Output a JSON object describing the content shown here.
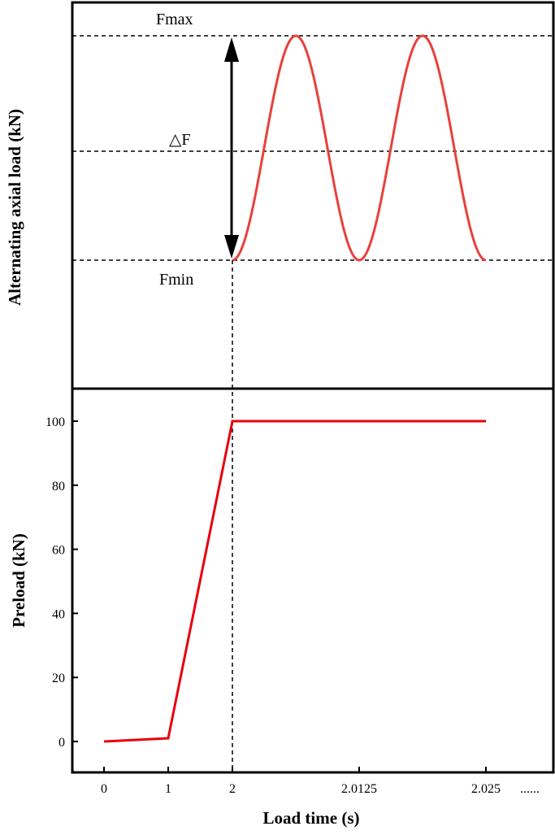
{
  "chart_data": [
    {
      "type": "line",
      "panel": "top",
      "title": "",
      "xlabel": "",
      "ylabel": "Alternating axial load (kN)",
      "annotations": {
        "max": "Fmax",
        "delta": "△F",
        "min": "Fmin"
      },
      "series": [
        {
          "color": "#e8413c",
          "shape": "sine",
          "cycles": 2,
          "start": "min",
          "end": "min"
        }
      ],
      "levels": [
        "max",
        "mean",
        "min"
      ],
      "grid": false,
      "legend": "none"
    },
    {
      "type": "line",
      "panel": "bottom",
      "title": "",
      "xlabel": "Load time (s)",
      "ylabel": "Preload  (kN)",
      "x_tick_labels": [
        "0",
        "1",
        "2",
        "2.0125",
        "2.025"
      ],
      "x_trailing_label": "......",
      "y_ticks": [
        0,
        20,
        40,
        60,
        80,
        100
      ],
      "ylim": [
        -10,
        110
      ],
      "series": [
        {
          "color": "#e8000c",
          "x": [
            0,
            1,
            2,
            2.0125,
            2.025
          ],
          "y": [
            0,
            1,
            100,
            100,
            100
          ]
        }
      ],
      "grid": false,
      "legend": "none"
    }
  ]
}
